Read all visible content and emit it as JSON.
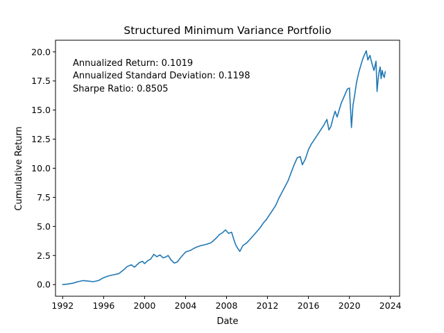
{
  "chart_data": {
    "type": "line",
    "title": "Structured Minimum Variance Portfolio",
    "xlabel": "Date",
    "ylabel": "Cumulative Return",
    "xlim": [
      1991.3,
      2024.9
    ],
    "ylim": [
      -1.0,
      21.0
    ],
    "grid": false,
    "legend": "none",
    "x_ticks": [
      {
        "value": 1992,
        "label": "1992"
      },
      {
        "value": 1996,
        "label": "1996"
      },
      {
        "value": 2000,
        "label": "2000"
      },
      {
        "value": 2004,
        "label": "2004"
      },
      {
        "value": 2008,
        "label": "2008"
      },
      {
        "value": 2012,
        "label": "2012"
      },
      {
        "value": 2016,
        "label": "2016"
      },
      {
        "value": 2020,
        "label": "2020"
      },
      {
        "value": 2024,
        "label": "2024"
      }
    ],
    "y_ticks": [
      {
        "value": 0.0,
        "label": "0.0"
      },
      {
        "value": 2.5,
        "label": "2.5"
      },
      {
        "value": 5.0,
        "label": "5.0"
      },
      {
        "value": 7.5,
        "label": "7.5"
      },
      {
        "value": 10.0,
        "label": "10.0"
      },
      {
        "value": 12.5,
        "label": "12.5"
      },
      {
        "value": 15.0,
        "label": "15.0"
      },
      {
        "value": 17.5,
        "label": "17.5"
      },
      {
        "value": 20.0,
        "label": "20.0"
      }
    ],
    "annotations": [
      "Annualized Return: 0.1019",
      "Annualized Standard Deviation: 0.1198",
      "Sharpe Ratio: 0.8505"
    ],
    "series": [
      {
        "color": "#1f77b4",
        "x": [
          1992.0,
          1992.5,
          1993.0,
          1993.5,
          1994.0,
          1994.5,
          1995.0,
          1995.5,
          1996.0,
          1996.5,
          1997.0,
          1997.5,
          1998.0,
          1998.3,
          1998.7,
          1999.0,
          1999.5,
          1999.8,
          2000.0,
          2000.3,
          2000.6,
          2000.9,
          2001.2,
          2001.5,
          2001.8,
          2002.0,
          2002.3,
          2002.6,
          2002.9,
          2003.2,
          2003.5,
          2003.8,
          2004.0,
          2004.5,
          2005.0,
          2005.5,
          2006.0,
          2006.5,
          2007.0,
          2007.3,
          2007.6,
          2007.9,
          2008.2,
          2008.5,
          2008.7,
          2008.9,
          2009.1,
          2009.3,
          2009.6,
          2010.0,
          2010.4,
          2010.7,
          2011.0,
          2011.3,
          2011.6,
          2011.9,
          2012.2,
          2012.5,
          2012.8,
          2013.1,
          2013.4,
          2013.7,
          2014.0,
          2014.3,
          2014.6,
          2014.9,
          2015.2,
          2015.4,
          2015.7,
          2016.0,
          2016.3,
          2016.6,
          2016.9,
          2017.2,
          2017.5,
          2017.8,
          2018.0,
          2018.2,
          2018.4,
          2018.6,
          2018.8,
          2019.0,
          2019.2,
          2019.5,
          2019.8,
          2020.0,
          2020.2,
          2020.35,
          2020.5,
          2020.7,
          2020.9,
          2021.1,
          2021.3,
          2021.5,
          2021.65,
          2021.8,
          2022.0,
          2022.2,
          2022.4,
          2022.6,
          2022.7,
          2022.8,
          2022.9,
          2023.0,
          2023.1,
          2023.2,
          2023.3,
          2023.4,
          2023.5
        ],
        "y": [
          0.0,
          0.05,
          0.12,
          0.25,
          0.35,
          0.3,
          0.25,
          0.35,
          0.6,
          0.75,
          0.85,
          0.95,
          1.3,
          1.55,
          1.7,
          1.5,
          1.9,
          2.0,
          1.8,
          2.05,
          2.2,
          2.6,
          2.4,
          2.55,
          2.3,
          2.35,
          2.5,
          2.1,
          1.85,
          1.95,
          2.3,
          2.6,
          2.8,
          2.95,
          3.2,
          3.35,
          3.45,
          3.6,
          4.0,
          4.3,
          4.45,
          4.7,
          4.4,
          4.5,
          3.9,
          3.4,
          3.1,
          2.85,
          3.35,
          3.6,
          4.0,
          4.3,
          4.6,
          4.9,
          5.3,
          5.6,
          6.0,
          6.4,
          6.8,
          7.4,
          7.9,
          8.4,
          8.9,
          9.6,
          10.3,
          10.9,
          11.0,
          10.3,
          10.8,
          11.6,
          12.1,
          12.5,
          12.9,
          13.3,
          13.7,
          14.2,
          13.3,
          13.6,
          14.3,
          14.9,
          14.4,
          15.0,
          15.6,
          16.2,
          16.8,
          16.9,
          13.5,
          15.4,
          16.2,
          17.4,
          18.2,
          18.8,
          19.4,
          19.8,
          20.1,
          19.3,
          19.7,
          19.0,
          18.4,
          19.2,
          16.6,
          17.6,
          18.3,
          18.7,
          17.7,
          18.4,
          18.0,
          17.8,
          18.3
        ]
      }
    ]
  }
}
